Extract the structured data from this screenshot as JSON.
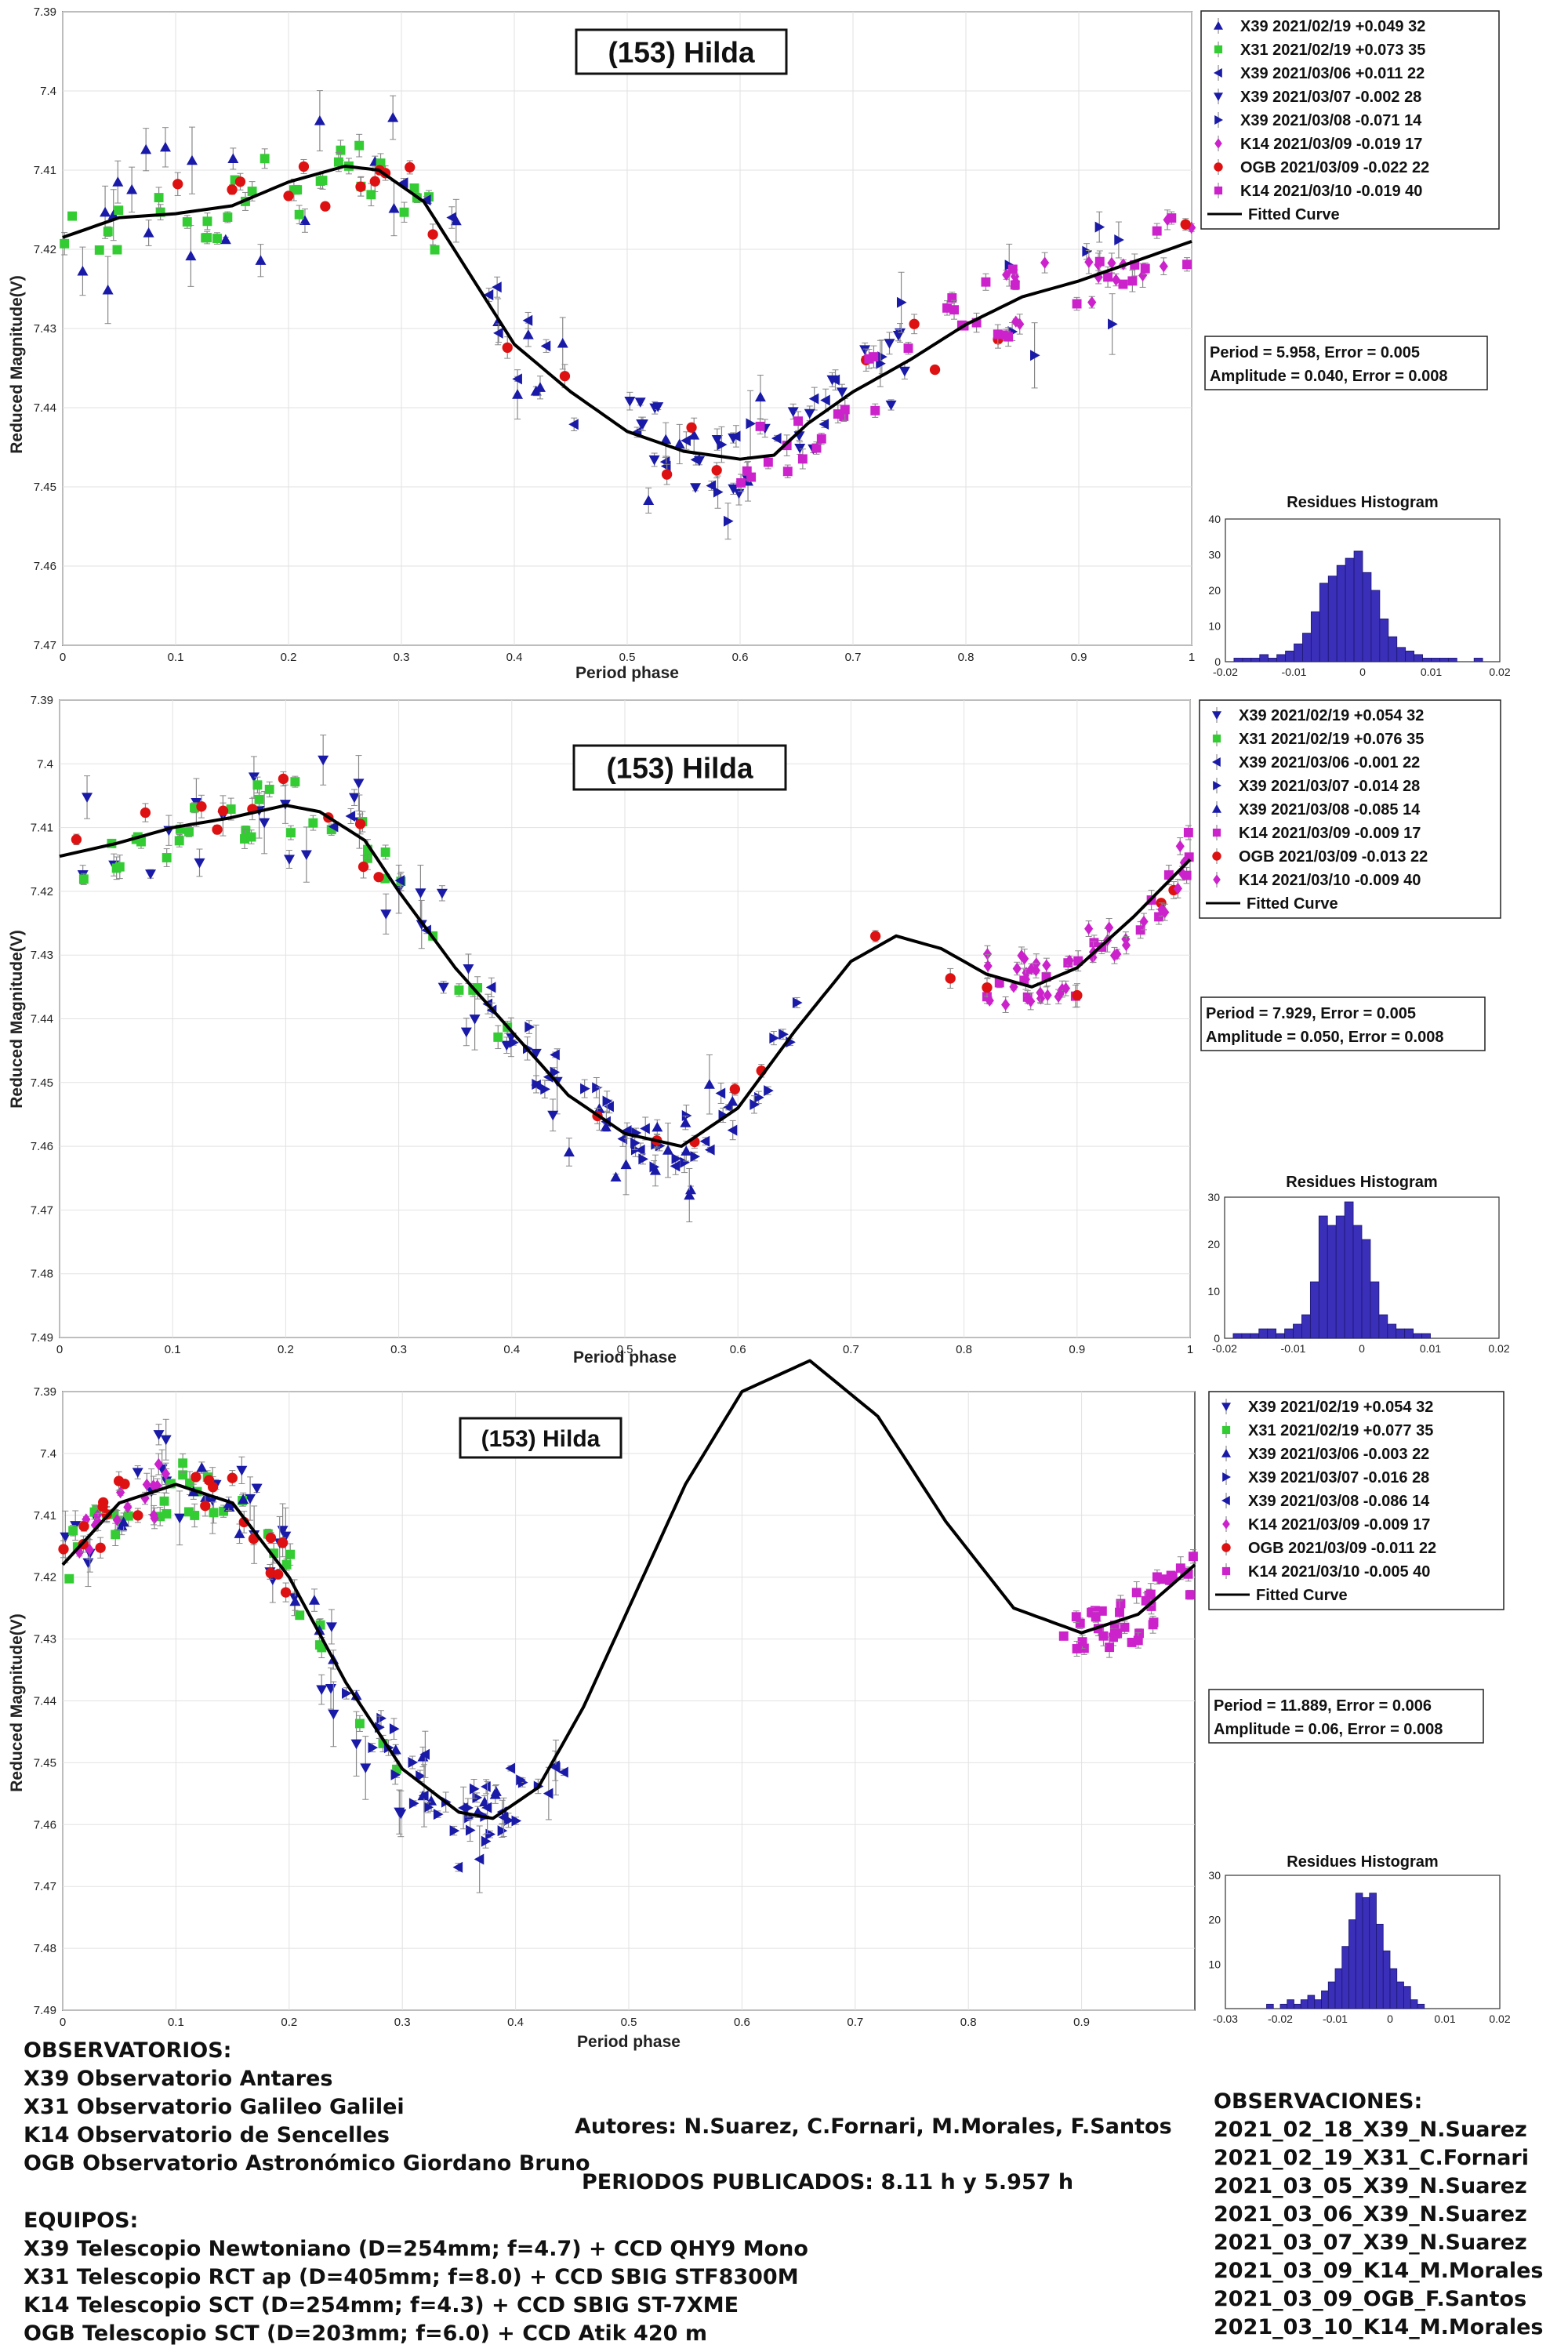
{
  "colors": {
    "x39": "#1a1aa8",
    "x31": "#33cc33",
    "k14": "#cc22cc",
    "ogb": "#dd1111",
    "curve": "#000000",
    "hist": "#3a2fb8",
    "grid": "#e2e2e2"
  },
  "chart_data": [
    {
      "type": "scatter",
      "title": "(153) Hilda",
      "xlabel": "Period phase",
      "ylabel": "Reduced Magnitude(V)",
      "xlim": [
        0,
        1
      ],
      "ylim": [
        7.39,
        7.47
      ],
      "y_reversed": true,
      "x_ticks": [
        "0",
        "0.1",
        "0.2",
        "0.3",
        "0.4",
        "0.5",
        "0.6",
        "0.7",
        "0.8",
        "0.9",
        "1"
      ],
      "y_ticks": [
        "7.39",
        "7.4",
        "7.41",
        "7.42",
        "7.43",
        "7.44",
        "7.45",
        "7.46",
        "7.47"
      ],
      "period_text": "Period =  5.958, Error = 0.005",
      "amplitude_text": "Amplitude = 0.040, Error = 0.008",
      "legend": [
        {
          "label": "X39 2021/02/19   +0.049    32",
          "color": "#1a1aa8",
          "marker": "tri-up"
        },
        {
          "label": "X31 2021/02/19   +0.073    35",
          "color": "#33cc33",
          "marker": "square"
        },
        {
          "label": "X39 2021/03/06   +0.011    22",
          "color": "#1a1aa8",
          "marker": "tri-left"
        },
        {
          "label": "X39 2021/03/07   -0.002    28",
          "color": "#1a1aa8",
          "marker": "tri-down"
        },
        {
          "label": "X39 2021/03/08   -0.071    14",
          "color": "#1a1aa8",
          "marker": "tri-right"
        },
        {
          "label": "K14 2021/03/09   -0.019    17",
          "color": "#cc22cc",
          "marker": "diamond"
        },
        {
          "label": "OGB 2021/03/09   -0.022    22",
          "color": "#dd1111",
          "marker": "circle"
        },
        {
          "label": "K14 2021/03/10   -0.019    40",
          "color": "#cc22cc",
          "marker": "square"
        }
      ],
      "legend_curve": "Fitted Curve",
      "curve": {
        "x": [
          0,
          0.05,
          0.1,
          0.15,
          0.2,
          0.25,
          0.28,
          0.32,
          0.36,
          0.4,
          0.45,
          0.5,
          0.55,
          0.6,
          0.63,
          0.66,
          0.7,
          0.75,
          0.8,
          0.85,
          0.9,
          0.95,
          1.0
        ],
        "y": [
          7.4185,
          7.416,
          7.4155,
          7.4145,
          7.4115,
          7.4095,
          7.41,
          7.414,
          7.423,
          7.432,
          7.438,
          7.443,
          7.4455,
          7.4465,
          7.446,
          7.442,
          7.438,
          7.434,
          7.4295,
          7.426,
          7.424,
          7.4215,
          7.419
        ]
      },
      "points_per_series": [
        32,
        35,
        22,
        28,
        14,
        17,
        22,
        40
      ],
      "histogram": {
        "title": "Residues Histogram",
        "xlim": [
          -0.02,
          0.02
        ],
        "ylim": [
          0,
          40
        ],
        "x_ticks": [
          "-0.02",
          "-0.01",
          "0",
          "0.01",
          "0.02"
        ],
        "y_ticks": [
          "0",
          "10",
          "20",
          "30",
          "40"
        ],
        "bin_start": -0.02,
        "bin_width": 0.00125,
        "counts": [
          0,
          1,
          1,
          1,
          2,
          1,
          2,
          3,
          5,
          8,
          14,
          22,
          24,
          27,
          29,
          31,
          25,
          20,
          12,
          7,
          4,
          3,
          2,
          1,
          1,
          1,
          1,
          0,
          0,
          1,
          0,
          0
        ]
      }
    },
    {
      "type": "scatter",
      "title": "(153) Hilda",
      "xlabel": "Period phase",
      "ylabel": "Reduced Magnitude(V)",
      "xlim": [
        0,
        1
      ],
      "ylim": [
        7.39,
        7.49
      ],
      "y_reversed": true,
      "x_ticks": [
        "0",
        "0.1",
        "0.2",
        "0.3",
        "0.4",
        "0.5",
        "0.6",
        "0.7",
        "0.8",
        "0.9",
        "1"
      ],
      "y_ticks": [
        "7.39",
        "7.4",
        "7.41",
        "7.42",
        "7.43",
        "7.44",
        "7.45",
        "7.46",
        "7.47",
        "7.48",
        "7.49"
      ],
      "period_text": "Period =  7.929, Error = 0.005",
      "amplitude_text": "Amplitude = 0.050, Error = 0.008",
      "legend": [
        {
          "label": "X39 2021/02/19   +0.054    32",
          "color": "#1a1aa8",
          "marker": "tri-down"
        },
        {
          "label": "X31 2021/02/19   +0.076    35",
          "color": "#33cc33",
          "marker": "square"
        },
        {
          "label": "X39 2021/03/06   -0.001    22",
          "color": "#1a1aa8",
          "marker": "tri-left"
        },
        {
          "label": "X39 2021/03/07   -0.014    28",
          "color": "#1a1aa8",
          "marker": "tri-right"
        },
        {
          "label": "X39 2021/03/08   -0.085    14",
          "color": "#1a1aa8",
          "marker": "tri-up"
        },
        {
          "label": "K14 2021/03/09   -0.009    17",
          "color": "#cc22cc",
          "marker": "square"
        },
        {
          "label": "OGB 2021/03/09   -0.013    22",
          "color": "#dd1111",
          "marker": "circle"
        },
        {
          "label": "K14 2021/03/10   -0.009    40",
          "color": "#cc22cc",
          "marker": "diamond"
        }
      ],
      "legend_curve": "Fitted Curve",
      "curve": {
        "x": [
          0,
          0.05,
          0.1,
          0.15,
          0.2,
          0.23,
          0.27,
          0.3,
          0.35,
          0.4,
          0.45,
          0.5,
          0.55,
          0.6,
          0.65,
          0.7,
          0.74,
          0.78,
          0.82,
          0.86,
          0.9,
          0.95,
          1.0
        ],
        "y": [
          7.4145,
          7.4125,
          7.41,
          7.4085,
          7.4065,
          7.4075,
          7.412,
          7.42,
          7.432,
          7.442,
          7.452,
          7.458,
          7.46,
          7.454,
          7.442,
          7.431,
          7.427,
          7.429,
          7.433,
          7.435,
          7.432,
          7.424,
          7.415
        ]
      },
      "points_per_series": [
        32,
        35,
        22,
        28,
        14,
        17,
        22,
        40
      ],
      "histogram": {
        "title": "Residues Histogram",
        "xlim": [
          -0.02,
          0.02
        ],
        "ylim": [
          0,
          30
        ],
        "x_ticks": [
          "-0.02",
          "-0.01",
          "0",
          "0.01",
          "0.02"
        ],
        "y_ticks": [
          "0",
          "10",
          "20",
          "30"
        ],
        "bin_start": -0.02,
        "bin_width": 0.00125,
        "counts": [
          0,
          1,
          1,
          1,
          2,
          2,
          1,
          2,
          3,
          5,
          12,
          26,
          24,
          26,
          29,
          24,
          21,
          12,
          5,
          3,
          2,
          2,
          1,
          1,
          0,
          0,
          0,
          0,
          0,
          0,
          0,
          0
        ]
      }
    },
    {
      "type": "scatter",
      "title": "(153) Hilda",
      "xlabel": "Period phase",
      "ylabel": "Reduced Magnitude(V)",
      "xlim": [
        0,
        1
      ],
      "ylim": [
        7.39,
        7.49
      ],
      "y_reversed": true,
      "x_ticks": [
        "0",
        "0.1",
        "0.2",
        "0.3",
        "0.4",
        "0.5",
        "0.6",
        "0.7",
        "0.8",
        "0.9"
      ],
      "y_ticks": [
        "7.39",
        "7.4",
        "7.41",
        "7.42",
        "7.43",
        "7.44",
        "7.45",
        "7.46",
        "7.47",
        "7.48",
        "7.49"
      ],
      "period_text": "Period =  11.889, Error = 0.006",
      "amplitude_text": "Amplitude = 0.06, Error = 0.008",
      "legend": [
        {
          "label": "X39 2021/02/19   +0.054    32",
          "color": "#1a1aa8",
          "marker": "tri-down"
        },
        {
          "label": "X31 2021/02/19   +0.077    35",
          "color": "#33cc33",
          "marker": "square"
        },
        {
          "label": "X39 2021/03/06   -0.003    22",
          "color": "#1a1aa8",
          "marker": "tri-up"
        },
        {
          "label": "X39 2021/03/07   -0.016    28",
          "color": "#1a1aa8",
          "marker": "tri-right"
        },
        {
          "label": "X39 2021/03/08   -0.086    14",
          "color": "#1a1aa8",
          "marker": "tri-left"
        },
        {
          "label": "K14 2021/03/09   -0.009    17",
          "color": "#cc22cc",
          "marker": "diamond"
        },
        {
          "label": "OGB 2021/03/09   -0.011    22",
          "color": "#dd1111",
          "marker": "circle"
        },
        {
          "label": "K14 2021/03/10   -0.005    40",
          "color": "#cc22cc",
          "marker": "square"
        }
      ],
      "legend_curve": "Fitted Curve",
      "curve": {
        "x": [
          0,
          0.05,
          0.1,
          0.15,
          0.2,
          0.25,
          0.3,
          0.35,
          0.38,
          0.42,
          0.46,
          0.5,
          0.55,
          0.6,
          0.66,
          0.72,
          0.78,
          0.84,
          0.9,
          0.95,
          1.0
        ],
        "y": [
          7.418,
          7.408,
          7.405,
          7.408,
          7.42,
          7.437,
          7.451,
          7.458,
          7.459,
          7.454,
          7.441,
          7.425,
          7.405,
          7.39,
          7.385,
          7.394,
          7.411,
          7.425,
          7.429,
          7.426,
          7.418
        ]
      },
      "points_per_series": [
        32,
        35,
        22,
        28,
        14,
        17,
        22,
        40
      ],
      "histogram": {
        "title": "Residues Histogram",
        "xlim": [
          -0.03,
          0.02
        ],
        "ylim": [
          0,
          30
        ],
        "x_ticks": [
          "-0.03",
          "-0.02",
          "-0.01",
          "0",
          "0.01",
          "0.02"
        ],
        "y_ticks": [
          "10",
          "20",
          "30"
        ],
        "bin_start": -0.03,
        "bin_width": 0.00125,
        "counts": [
          0,
          0,
          0,
          0,
          0,
          0,
          1,
          0,
          1,
          2,
          1,
          2,
          3,
          2,
          4,
          6,
          9,
          14,
          20,
          26,
          25,
          26,
          19,
          13,
          9,
          6,
          5,
          2,
          1,
          0,
          0,
          0,
          0,
          0,
          0,
          0,
          0,
          0,
          0,
          0
        ]
      }
    }
  ],
  "footer": {
    "observatories_title": "OBSERVATORIOS:",
    "observatories": [
      "X39 Observatorio Antares",
      "X31 Observatorio Galileo Galilei",
      "K14 Observatorio de Sencelles",
      "OGB Observatorio Astronómico Giordano Bruno"
    ],
    "equipment_title": "EQUIPOS:",
    "equipment": [
      "X39 Telescopio Newtoniano (D=254mm; f=4.7) + CCD QHY9 Mono",
      "X31 Telescopio RCT ap (D=405mm; f=8.0) + CCD SBIG STF8300M",
      "K14 Telescopio SCT (D=254mm; f=4.3) + CCD SBIG ST-7XME",
      "OGB Telescopio SCT (D=203mm; f=6.0) + CCD Atik 420 m"
    ],
    "authors": "Autores: N.Suarez, C.Fornari, M.Morales, F.Santos",
    "periods_published": "PERIODOS PUBLICADOS: 8.11 h y 5.957 h",
    "observations_title": "OBSERVACIONES:",
    "observations": [
      "2021_02_18_X39_N.Suarez",
      "2021_02_19_X31_C.Fornari",
      "2021_03_05_X39_N.Suarez",
      "2021_03_06_X39_N.Suarez",
      "2021_03_07_X39_N.Suarez",
      "2021_03_09_K14_M.Morales",
      "2021_03_09_OGB_F.Santos",
      "2021_03_10_K14_M.Morales"
    ]
  }
}
